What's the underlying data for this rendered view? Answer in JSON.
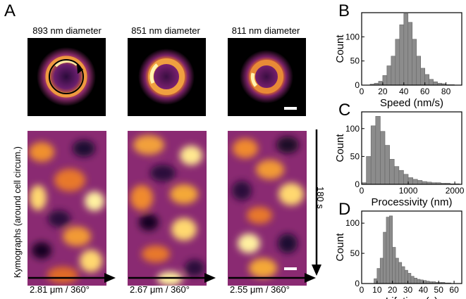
{
  "panels": {
    "a": "A",
    "b": "B",
    "c": "C",
    "d": "D"
  },
  "images": [
    {
      "title": "893 nm diameter",
      "bottom": "2.81 μm / 360°"
    },
    {
      "title": "851 nm diameter",
      "bottom": "2.67 μm / 360°"
    },
    {
      "title": "811 nm diameter",
      "bottom": "2.55 μm / 360°"
    }
  ],
  "kymo_ylabel": "Kymographs (around cell circum.)",
  "time_label": "180 s",
  "colors": {
    "bar": "#8c8c8c",
    "bar_edge": "#666666",
    "axis": "#000000",
    "heat_low": "#1a0a2e",
    "heat_mid": "#a0307a",
    "heat_high": "#fff2a0"
  },
  "chart_data": [
    {
      "type": "bar",
      "title": "",
      "xlabel": "Speed (nm/s)",
      "ylabel": "Count",
      "xlim": [
        0,
        95
      ],
      "ylim": [
        0,
        150
      ],
      "xticks": [
        0,
        20,
        40,
        60,
        80
      ],
      "yticks": [
        0,
        50,
        100
      ],
      "bin_width": 4,
      "bin_start": 8,
      "values": [
        2,
        4,
        8,
        20,
        40,
        60,
        95,
        125,
        148,
        130,
        95,
        60,
        35,
        22,
        12,
        7,
        4,
        3,
        1,
        1
      ]
    },
    {
      "type": "bar",
      "title": "",
      "xlabel": "Processivity (nm)",
      "ylabel": "Count",
      "xlim": [
        0,
        2150
      ],
      "ylim": [
        0,
        130
      ],
      "xticks": [
        0,
        1000,
        2000
      ],
      "yticks": [
        0,
        50,
        100
      ],
      "bin_width": 100,
      "bin_start": 0,
      "values": [
        3,
        50,
        105,
        122,
        95,
        70,
        45,
        32,
        25,
        18,
        12,
        9,
        7,
        5,
        4,
        3,
        3,
        2,
        2,
        1,
        1
      ]
    },
    {
      "type": "bar",
      "title": "",
      "xlabel": "Lifetime (s)",
      "ylabel": "Count",
      "xlim": [
        0,
        65
      ],
      "ylim": [
        0,
        120
      ],
      "xticks": [
        0,
        10,
        20,
        30,
        40,
        50,
        60
      ],
      "yticks": [
        0,
        50,
        100
      ],
      "bin_width": 2,
      "bin_start": 8,
      "values": [
        8,
        25,
        42,
        85,
        110,
        112,
        60,
        42,
        35,
        28,
        22,
        17,
        12,
        9,
        7,
        6,
        5,
        4,
        3,
        3,
        2,
        2,
        2,
        1,
        1
      ]
    }
  ]
}
